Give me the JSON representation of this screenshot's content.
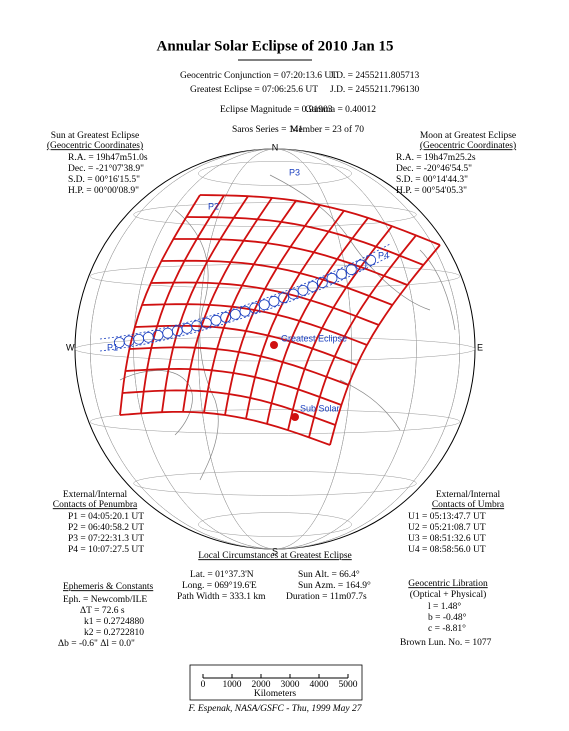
{
  "title": "Annular Solar Eclipse of 2010 Jan 15",
  "header": [
    [
      "Geocentric Conjunction = 07:20:13.6 UT",
      "J.D. = 2455211.805713"
    ],
    [
      "Greatest Eclipse = 07:06:25.6 UT",
      "J.D. = 2455211.796130"
    ],
    [
      "Eclipse Magnitude = 0.91903",
      "Gamma = 0.40012"
    ],
    [
      "Saros Series = 141",
      "Member = 23 of 70"
    ]
  ],
  "sun": {
    "title": [
      "Sun at Greatest Eclipse",
      "(Geocentric Coordinates)"
    ],
    "lines": [
      "R.A. = 19h47m51.0s",
      "Dec. = -21°07'38.9\"",
      "S.D. = 00°16'15.5\"",
      "H.P. = 00°00'08.9\""
    ]
  },
  "moon": {
    "title": [
      "Moon at Greatest Eclipse",
      "(Geocentric Coordinates)"
    ],
    "lines": [
      "R.A. = 19h47m25.2s",
      "Dec. = -20°46'54.5\"",
      "S.D. = 00°14'44.3\"",
      "H.P. = 00°54'05.3\""
    ]
  },
  "map": {
    "north": "N",
    "south": "S",
    "east": "E",
    "west": "W",
    "p1": "P1",
    "p2": "P2",
    "p3": "P3",
    "p4": "P4",
    "greatest": "Greatest Eclipse",
    "sub_solar": "Sub Solar"
  },
  "penumbra": {
    "title": [
      "External/Internal",
      "Contacts of Penumbra"
    ],
    "lines": [
      "P1 = 04:05:20.1 UT",
      "P2 = 06:40:58.2 UT",
      "P3 = 07:22:31.3 UT",
      "P4 = 10:07:27.5 UT"
    ]
  },
  "umbra": {
    "title": [
      "External/Internal",
      "Contacts of Umbra"
    ],
    "lines": [
      "U1 = 05:13:47.7 UT",
      "U2 = 05:21:08.7 UT",
      "U3 = 08:51:32.6 UT",
      "U4 = 08:58:56.0 UT"
    ]
  },
  "local": {
    "title": "Local Circumstances at Greatest Eclipse",
    "rows": [
      [
        "Lat. = 01°37.3'N",
        "Sun Alt. = 66.4°"
      ],
      [
        "Long. = 069°19.6'E",
        "Sun Azm. = 164.9°"
      ],
      [
        "Path Width = 333.1 km",
        "Duration = 11m07.7s"
      ]
    ]
  },
  "ephemeris": {
    "title": "Ephemeris & Constants",
    "lines": [
      "Eph. = Newcomb/ILE",
      "ΔT = 72.6 s",
      "k1 = 0.2724880",
      "k2 = 0.2722810",
      "Δb = -0.6\"   Δl = 0.0\""
    ]
  },
  "libration": {
    "title": [
      "Geocentric Libration",
      "(Optical + Physical)"
    ],
    "lines": [
      "l = 1.48°",
      "b = -0.48°",
      "c = -8.81°",
      "Brown Lun. No. = 1077"
    ]
  },
  "scale": {
    "ticks": [
      "0",
      "1000",
      "2000",
      "3000",
      "4000",
      "5000"
    ],
    "unit": "Kilometers"
  },
  "footer": "F. Espenak, NASA/GSFC - Thu, 1999 May 27"
}
